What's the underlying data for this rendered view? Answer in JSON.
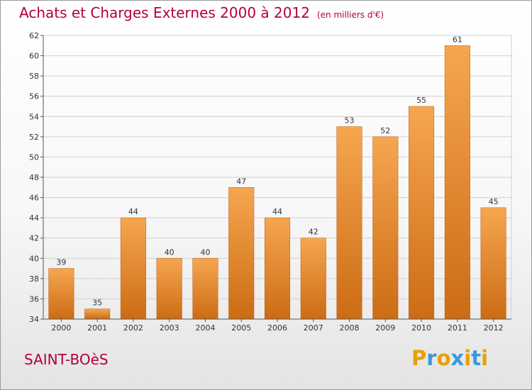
{
  "header": {
    "title": "Achats et Charges Externes 2000 à 2012",
    "subtitle": "(en milliers d'€)"
  },
  "footer": {
    "city": "SAINT-BOèS",
    "logo_text": "Proxiti",
    "logo_letters": [
      "P",
      "r",
      "o",
      "x",
      "i",
      "t",
      "i"
    ],
    "logo_colors": [
      "#e8a000",
      "#3a9ad9",
      "#e8a000",
      "#3a9ad9",
      "#e8a000",
      "#3a9ad9",
      "#e8a000"
    ]
  },
  "colors": {
    "accent": "#b4003c",
    "bar_top": "#f6a650",
    "bar_bottom": "#cc6c14"
  },
  "chart_data": {
    "type": "bar",
    "title": "Achats et Charges Externes 2000 à 2012",
    "subtitle": "(en milliers d'€)",
    "xlabel": "",
    "ylabel": "",
    "categories": [
      "2000",
      "2001",
      "2002",
      "2003",
      "2004",
      "2005",
      "2006",
      "2007",
      "2008",
      "2009",
      "2010",
      "2011",
      "2012"
    ],
    "values": [
      39,
      35,
      44,
      40,
      40,
      47,
      44,
      42,
      53,
      52,
      55,
      61,
      45
    ],
    "ylim": [
      34,
      62
    ],
    "yticks": [
      34,
      36,
      38,
      40,
      42,
      44,
      46,
      48,
      50,
      52,
      54,
      56,
      58,
      60,
      62
    ],
    "grid": true
  }
}
